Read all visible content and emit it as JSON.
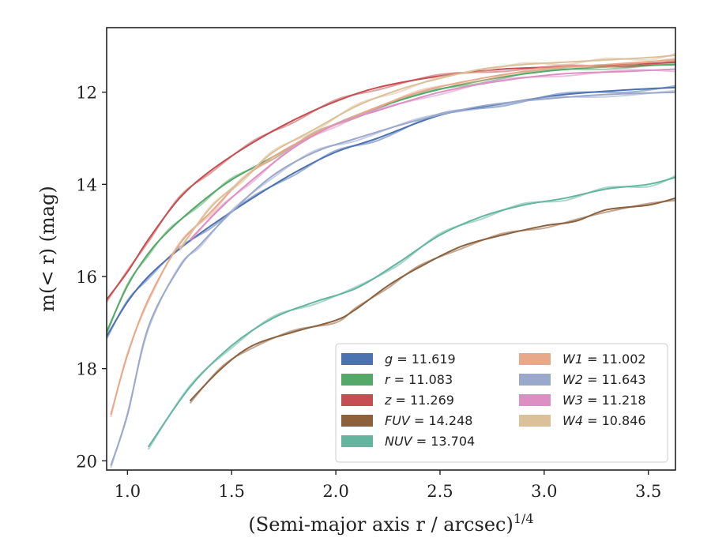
{
  "chart_data": {
    "type": "line",
    "xlabel": "(Semi-major axis r / arcsec)",
    "xlabel_sup": "1/4",
    "ylabel": "m(< r) (mag)",
    "xlim": [
      0.9,
      3.63
    ],
    "ylim": [
      20.2,
      10.6
    ],
    "y_inverted": true,
    "x_ticks": [
      1.0,
      1.5,
      2.0,
      2.5,
      3.0,
      3.5
    ],
    "x_tick_labels": [
      "1.0",
      "1.5",
      "2.0",
      "2.5",
      "3.0",
      "3.5"
    ],
    "y_ticks": [
      12,
      14,
      16,
      18,
      20
    ],
    "y_tick_labels": [
      "12",
      "14",
      "16",
      "18",
      "20"
    ],
    "grid": false,
    "legend_position": "lower-right",
    "legend_columns": 2,
    "series": [
      {
        "name": "g",
        "label_value": "11.619",
        "color": "#4c72b0",
        "x": [
          0.9,
          1.0,
          1.1,
          1.25,
          1.4,
          1.6,
          1.8,
          2.0,
          2.2,
          2.5,
          2.8,
          3.1,
          3.4,
          3.63
        ],
        "y": [
          17.3,
          16.55,
          16.0,
          15.4,
          14.9,
          14.3,
          13.75,
          13.3,
          13.0,
          12.5,
          12.25,
          12.05,
          11.95,
          11.9
        ]
      },
      {
        "name": "r",
        "label_value": "11.083",
        "color": "#55a868",
        "x": [
          0.9,
          1.0,
          1.1,
          1.2,
          1.35,
          1.5,
          1.7,
          1.9,
          2.1,
          2.4,
          2.7,
          3.0,
          3.3,
          3.63
        ],
        "y": [
          17.2,
          16.2,
          15.5,
          15.0,
          14.4,
          13.9,
          13.4,
          12.9,
          12.5,
          12.05,
          11.75,
          11.55,
          11.45,
          11.4
        ]
      },
      {
        "name": "z",
        "label_value": "11.269",
        "color": "#c44e52",
        "x": [
          0.9,
          1.0,
          1.1,
          1.25,
          1.4,
          1.6,
          1.8,
          2.0,
          2.2,
          2.5,
          2.8,
          3.1,
          3.4,
          3.63
        ],
        "y": [
          16.5,
          15.9,
          15.2,
          14.3,
          13.7,
          13.1,
          12.6,
          12.2,
          11.9,
          11.65,
          11.5,
          11.45,
          11.4,
          11.35
        ]
      },
      {
        "name": "FUV",
        "label_value": "14.248",
        "color": "#8c613c",
        "x": [
          1.3,
          1.45,
          1.6,
          1.8,
          2.0,
          2.1,
          2.25,
          2.4,
          2.6,
          2.8,
          3.0,
          3.15,
          3.3,
          3.5,
          3.63
        ],
        "y": [
          18.7,
          18.0,
          17.5,
          17.2,
          16.95,
          16.7,
          16.2,
          15.8,
          15.35,
          15.1,
          14.9,
          14.8,
          14.55,
          14.45,
          14.3
        ]
      },
      {
        "name": "NUV",
        "label_value": "13.704",
        "color": "#64b5a0",
        "x": [
          1.1,
          1.3,
          1.5,
          1.7,
          1.9,
          2.1,
          2.3,
          2.5,
          2.7,
          2.9,
          3.1,
          3.3,
          3.5,
          3.63
        ],
        "y": [
          19.7,
          18.4,
          17.5,
          16.9,
          16.55,
          16.25,
          15.7,
          15.1,
          14.7,
          14.45,
          14.3,
          14.1,
          14.0,
          13.85
        ]
      },
      {
        "name": "W1",
        "label_value": "11.002",
        "color": "#e8a88a",
        "x": [
          0.92,
          1.0,
          1.1,
          1.25,
          1.4,
          1.55,
          1.7,
          1.9,
          2.1,
          2.4,
          2.7,
          3.0,
          3.3,
          3.63
        ],
        "y": [
          19.0,
          17.7,
          16.5,
          15.3,
          14.6,
          13.9,
          13.4,
          12.9,
          12.5,
          12.0,
          11.7,
          11.5,
          11.4,
          11.3
        ]
      },
      {
        "name": "W2",
        "label_value": "11.643",
        "color": "#9aa8cc",
        "x": [
          0.92,
          1.0,
          1.1,
          1.25,
          1.35,
          1.5,
          1.7,
          1.9,
          2.1,
          2.4,
          2.7,
          3.0,
          3.3,
          3.63
        ],
        "y": [
          20.1,
          19.0,
          17.1,
          15.8,
          15.3,
          14.6,
          13.8,
          13.3,
          13.0,
          12.6,
          12.3,
          12.15,
          12.05,
          12.0
        ]
      },
      {
        "name": "W3",
        "label_value": "11.218",
        "color": "#dd8fc4",
        "x": [
          1.3,
          1.45,
          1.6,
          1.8,
          2.0,
          2.2,
          2.5,
          2.8,
          3.1,
          3.4,
          3.63
        ],
        "y": [
          15.2,
          14.5,
          13.9,
          13.2,
          12.7,
          12.4,
          12.0,
          11.75,
          11.6,
          11.55,
          11.5
        ]
      },
      {
        "name": "W4",
        "label_value": "10.846",
        "color": "#dcc09a",
        "x": [
          1.25,
          1.4,
          1.55,
          1.7,
          1.9,
          2.1,
          2.3,
          2.5,
          2.7,
          2.9,
          3.1,
          3.3,
          3.5,
          3.63
        ],
        "y": [
          15.4,
          14.5,
          13.9,
          13.3,
          12.8,
          12.3,
          11.95,
          11.7,
          11.5,
          11.4,
          11.35,
          11.3,
          11.25,
          11.2
        ]
      }
    ]
  }
}
